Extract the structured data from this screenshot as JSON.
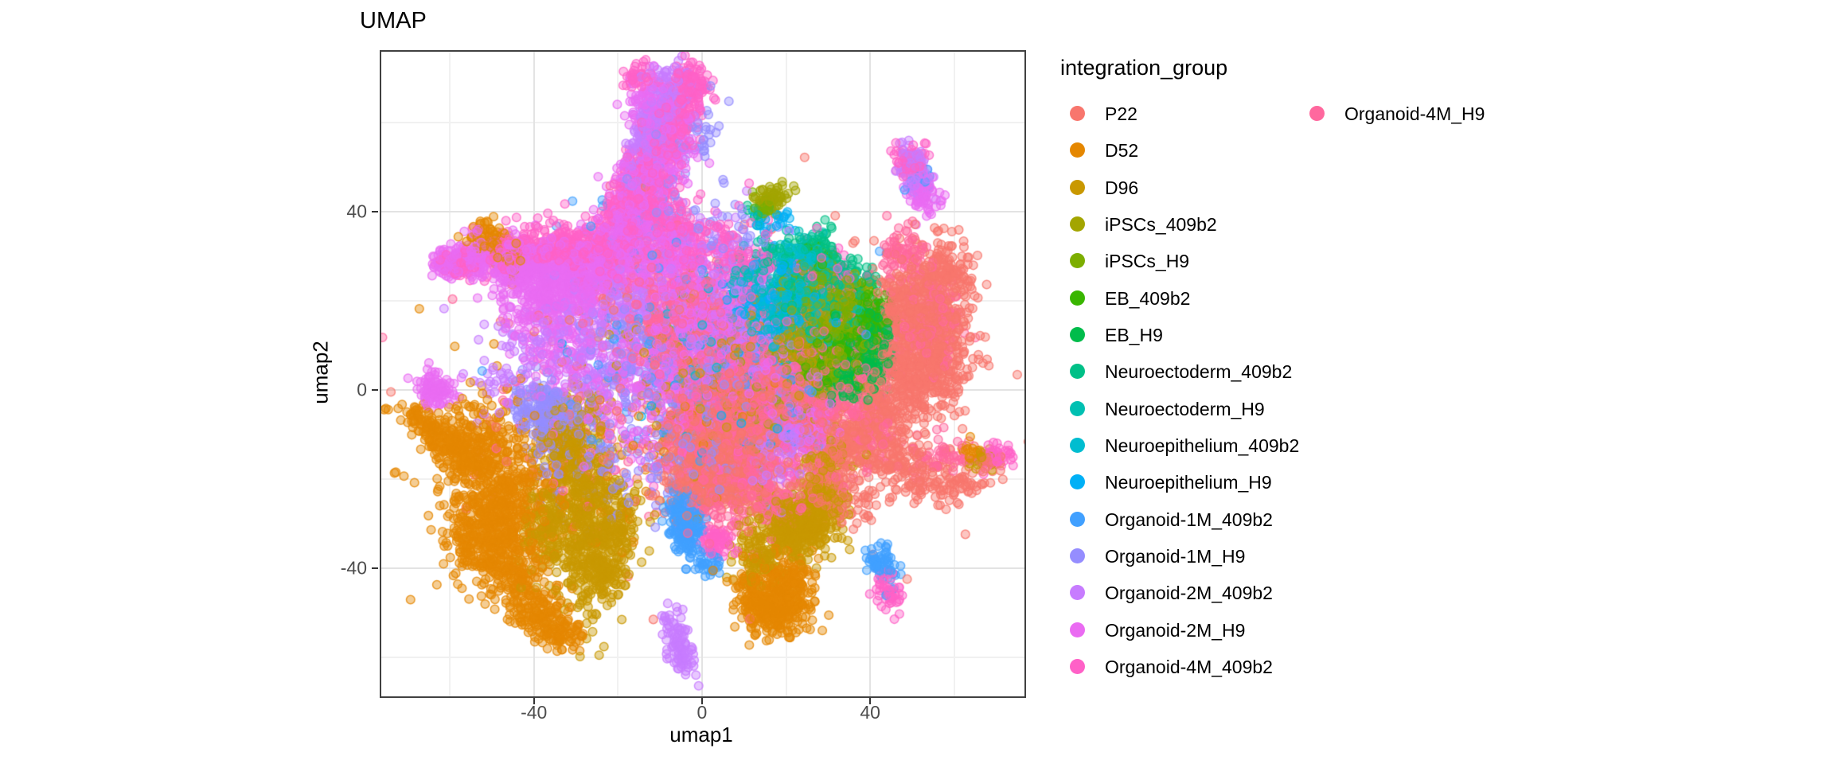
{
  "title": "UMAP",
  "axes": {
    "x": {
      "label": "umap1",
      "ticks": [
        -40,
        0,
        40
      ],
      "minor_ticks": [
        -60,
        -20,
        20,
        60
      ]
    },
    "y": {
      "label": "umap2",
      "ticks": [
        40,
        0,
        -40
      ],
      "minor_ticks": [
        60,
        20,
        -20,
        -60
      ]
    }
  },
  "legend": {
    "title": "integration_group",
    "items": [
      {
        "label": "P22",
        "color": "#F8766D"
      },
      {
        "label": "D52",
        "color": "#E58700"
      },
      {
        "label": "D96",
        "color": "#C99800"
      },
      {
        "label": "iPSCs_409b2",
        "color": "#A3A500"
      },
      {
        "label": "iPSCs_H9",
        "color": "#7CAE00"
      },
      {
        "label": "EB_409b2",
        "color": "#39B600"
      },
      {
        "label": "EB_H9",
        "color": "#00BC4B"
      },
      {
        "label": "Neuroectoderm_409b2",
        "color": "#00C087"
      },
      {
        "label": "Neuroectoderm_H9",
        "color": "#00C0B2"
      },
      {
        "label": "Neuroepithelium_409b2",
        "color": "#00BDD0"
      },
      {
        "label": "Neuroepithelium_H9",
        "color": "#00B0F6"
      },
      {
        "label": "Organoid-1M_409b2",
        "color": "#41A0FF"
      },
      {
        "label": "Organoid-1M_H9",
        "color": "#958DFF"
      },
      {
        "label": "Organoid-2M_409b2",
        "color": "#C77CFF"
      },
      {
        "label": "Organoid-2M_H9",
        "color": "#EA6BF2"
      },
      {
        "label": "Organoid-4M_409b2",
        "color": "#FF61C7"
      },
      {
        "label": "Organoid-4M_H9",
        "color": "#FF689E"
      }
    ]
  },
  "chart_data": {
    "type": "scatter",
    "title": "UMAP",
    "xlabel": "umap1",
    "ylabel": "umap2",
    "xlim": [
      -76.3,
      76.7
    ],
    "ylim": [
      -68.8,
      75.9
    ],
    "x_ticks": [
      -40,
      0,
      40
    ],
    "y_ticks": [
      40,
      0,
      -40
    ],
    "x_minor": [
      -60,
      -20,
      20,
      60
    ],
    "y_minor": [
      60,
      20,
      -20,
      -60
    ],
    "grid": true,
    "legend_position": "right",
    "point_alpha": 0.42,
    "point_radius_px": 5.3,
    "groups": [
      "P22",
      "D52",
      "D96",
      "iPSCs_409b2",
      "iPSCs_H9",
      "EB_409b2",
      "EB_H9",
      "Neuroectoderm_409b2",
      "Neuroectoderm_H9",
      "Neuroepithelium_409b2",
      "Neuroepithelium_H9",
      "Organoid-1M_409b2",
      "Organoid-1M_H9",
      "Organoid-2M_409b2",
      "Organoid-2M_H9",
      "Organoid-4M_409b2",
      "Organoid-4M_H9"
    ],
    "cluster_format": "[group_index, center_x, center_y, sigma_x, sigma_y, n_points, rotation_deg?]",
    "clusters": [
      [
        0,
        53,
        14,
        6,
        7,
        500
      ],
      [
        0,
        57,
        26,
        4,
        4,
        150
      ],
      [
        0,
        47,
        1,
        5,
        5,
        220
      ],
      [
        0,
        44,
        -13,
        4,
        4,
        150
      ],
      [
        0,
        52,
        -19,
        4,
        2.5,
        90
      ],
      [
        0,
        60,
        -22,
        3,
        2,
        50
      ],
      [
        0,
        2,
        -12,
        6,
        6,
        320
      ],
      [
        0,
        8,
        -20,
        5,
        4,
        220
      ],
      [
        0,
        -3,
        -19,
        4,
        4,
        150
      ],
      [
        0,
        12,
        -6,
        6,
        5,
        220
      ],
      [
        0,
        21,
        -3,
        6,
        5,
        150
      ],
      [
        0,
        28,
        -19,
        3,
        5,
        110
      ],
      [
        0,
        34,
        -12,
        3,
        4,
        110
      ],
      [
        0,
        40,
        -5,
        3,
        4,
        90
      ],
      [
        0,
        5,
        2,
        8,
        7,
        200
      ],
      [
        0,
        0,
        0,
        28,
        18,
        180
      ],
      [
        0,
        55,
        5,
        4,
        5,
        150
      ],
      [
        0,
        48,
        20,
        4,
        4,
        120
      ],
      [
        0,
        36,
        -25,
        3,
        3,
        60
      ],
      [
        0,
        68,
        -17,
        2,
        2,
        30
      ],
      [
        1,
        -48,
        -25,
        6,
        8,
        550
      ],
      [
        1,
        -55,
        -13,
        4,
        4,
        180
      ],
      [
        1,
        -66,
        -7.5,
        3,
        1.6,
        90,
        -30
      ],
      [
        1,
        -60,
        -12,
        3,
        2.5,
        80,
        -25
      ],
      [
        1,
        -44,
        -42,
        4,
        4,
        160
      ],
      [
        1,
        -38,
        -51,
        3.5,
        2.5,
        130
      ],
      [
        1,
        -33,
        -55,
        2.5,
        1.8,
        60
      ],
      [
        1,
        -52,
        -35,
        4,
        4,
        150
      ],
      [
        1,
        17,
        -49,
        4,
        3,
        260
      ],
      [
        1,
        21,
        -43,
        3,
        3,
        130
      ],
      [
        1,
        13,
        -44,
        2.5,
        2.5,
        80
      ],
      [
        1,
        -51,
        34,
        2.5,
        1.8,
        70
      ],
      [
        1,
        -45,
        29,
        2,
        1.5,
        40
      ],
      [
        1,
        -40,
        -20,
        14,
        12,
        160
      ],
      [
        1,
        5,
        -2,
        12,
        9,
        90
      ],
      [
        1,
        64,
        -14,
        1.5,
        1.2,
        18
      ],
      [
        2,
        -28,
        -25,
        3.5,
        11,
        420
      ],
      [
        2,
        -24,
        -40,
        3.5,
        4,
        160
      ],
      [
        2,
        -33,
        -12,
        3,
        4,
        160
      ],
      [
        2,
        -36,
        -31,
        4,
        6,
        200
      ],
      [
        2,
        22,
        -31,
        5,
        3.5,
        380
      ],
      [
        2,
        27,
        -25,
        3,
        3,
        130
      ],
      [
        2,
        13,
        -37,
        3,
        3,
        90
      ],
      [
        2,
        24,
        9,
        6,
        5,
        130
      ],
      [
        2,
        5,
        4,
        13,
        9,
        180
      ],
      [
        2,
        30,
        -15,
        3,
        3,
        70
      ],
      [
        2,
        67,
        -16,
        2,
        1.5,
        22
      ],
      [
        2,
        -20,
        -30,
        3,
        5,
        120
      ],
      [
        3,
        27,
        17,
        4.5,
        4,
        360
      ],
      [
        3,
        31,
        22,
        3,
        3,
        150
      ],
      [
        3,
        22,
        12,
        3,
        3,
        130
      ],
      [
        3,
        16.5,
        43,
        1.8,
        1.4,
        55
      ],
      [
        3,
        20,
        2,
        8,
        6,
        90
      ],
      [
        3,
        33,
        8,
        3,
        3,
        90
      ],
      [
        4,
        31,
        13,
        4,
        3.5,
        320
      ],
      [
        4,
        26,
        24,
        3,
        3,
        130
      ],
      [
        4,
        35,
        18,
        3,
        3,
        130
      ],
      [
        4,
        15,
        41.5,
        1.6,
        1.3,
        35
      ],
      [
        4,
        28,
        6,
        3,
        3,
        90
      ],
      [
        5,
        35,
        11,
        3.5,
        3,
        260
      ],
      [
        5,
        30,
        6,
        3,
        3,
        110
      ],
      [
        5,
        40,
        15,
        2.5,
        2.5,
        90
      ],
      [
        5,
        27,
        30,
        2,
        2,
        25
      ],
      [
        5,
        38,
        20,
        2.5,
        2,
        50
      ],
      [
        6,
        37,
        7,
        3,
        3.5,
        320
      ],
      [
        6,
        41,
        11,
        2.5,
        2.5,
        110
      ],
      [
        6,
        33,
        2,
        3,
        2.5,
        90
      ],
      [
        6,
        36,
        15,
        2.5,
        2,
        60
      ],
      [
        7,
        30,
        25,
        4,
        3,
        160
      ],
      [
        7,
        24,
        18,
        4,
        3,
        110
      ],
      [
        7,
        35,
        21,
        3,
        2.5,
        90
      ],
      [
        7,
        14,
        40,
        1.5,
        1.2,
        15
      ],
      [
        7,
        18,
        28,
        4,
        3,
        55
      ],
      [
        7,
        28,
        33,
        2.5,
        2,
        35
      ],
      [
        8,
        27,
        21,
        4,
        3,
        160
      ],
      [
        8,
        20,
        15,
        4,
        3,
        110
      ],
      [
        8,
        32,
        16,
        3,
        3,
        90
      ],
      [
        8,
        12,
        25,
        3,
        3,
        45
      ],
      [
        8,
        22,
        30,
        3,
        2.5,
        45
      ],
      [
        9,
        22,
        20,
        4,
        4,
        160
      ],
      [
        9,
        16,
        14,
        3,
        3,
        90
      ],
      [
        9,
        28,
        12,
        3,
        3,
        90
      ],
      [
        9,
        8,
        12,
        9,
        7,
        90
      ],
      [
        9,
        25,
        28,
        3,
        2.5,
        45
      ],
      [
        10,
        18,
        17,
        3,
        3,
        110
      ],
      [
        10,
        24,
        25,
        3,
        3,
        65
      ],
      [
        10,
        10,
        20,
        4,
        4,
        65
      ],
      [
        10,
        17,
        37,
        2.5,
        2.5,
        28
      ],
      [
        10,
        2,
        2,
        14,
        11,
        70
      ],
      [
        10,
        30,
        18,
        3,
        3,
        50
      ],
      [
        11,
        -3.5,
        -31,
        1.8,
        3,
        210
      ],
      [
        11,
        -5,
        -25,
        2,
        2,
        65
      ],
      [
        11,
        43,
        -39,
        1.6,
        2,
        65,
        15
      ],
      [
        11,
        1,
        -39,
        2,
        1.5,
        35
      ],
      [
        11,
        -12,
        2,
        14,
        11,
        85
      ],
      [
        11,
        14,
        8,
        11,
        9,
        60
      ],
      [
        11,
        -15,
        30,
        11,
        9,
        45
      ],
      [
        11,
        51,
        47,
        1.5,
        1.5,
        15
      ],
      [
        12,
        -35,
        -8,
        4,
        4,
        160
      ],
      [
        12,
        -40,
        -3,
        3,
        3,
        90
      ],
      [
        12,
        8,
        3,
        8,
        7,
        160
      ],
      [
        12,
        -15,
        8,
        6,
        6,
        110
      ],
      [
        12,
        -2,
        -14,
        9,
        7,
        90
      ],
      [
        12,
        -25,
        -18,
        6,
        6,
        70
      ],
      [
        12,
        5,
        35,
        6,
        6,
        40
      ],
      [
        12,
        -10,
        45,
        4,
        8,
        50,
        -15
      ],
      [
        12,
        0,
        58,
        3,
        5,
        30,
        -15
      ],
      [
        13,
        -10,
        62,
        2.5,
        4.5,
        140,
        -15
      ],
      [
        13,
        -14,
        54,
        2.5,
        4,
        110,
        -15
      ],
      [
        13,
        -6,
        68,
        3,
        2.5,
        70
      ],
      [
        13,
        5,
        12,
        8,
        7,
        160
      ],
      [
        13,
        -20,
        20,
        5,
        5,
        110
      ],
      [
        13,
        51,
        49,
        1.8,
        3,
        90,
        20
      ],
      [
        13,
        22,
        -10,
        3,
        2,
        90
      ],
      [
        13,
        -5.5,
        -57,
        1.5,
        4,
        100,
        15
      ],
      [
        13,
        -25,
        5,
        5,
        5,
        110
      ],
      [
        13,
        -2,
        30,
        8,
        6,
        80
      ],
      [
        13,
        -35,
        15,
        5,
        5,
        70
      ],
      [
        13,
        15,
        -15,
        5,
        4,
        70
      ],
      [
        13,
        -45,
        5,
        5,
        7,
        60
      ],
      [
        14,
        -15,
        45,
        3,
        6,
        220,
        -15
      ],
      [
        14,
        -19,
        35,
        3,
        4,
        160
      ],
      [
        14,
        -8,
        55,
        3,
        5,
        160,
        -15
      ],
      [
        14,
        -12,
        65,
        3,
        3,
        90
      ],
      [
        14,
        -30,
        25,
        6,
        4,
        320
      ],
      [
        14,
        -42,
        28,
        5,
        3,
        260
      ],
      [
        14,
        -52,
        30,
        3.5,
        2.2,
        130
      ],
      [
        14,
        -60,
        29,
        2.5,
        1.8,
        100
      ],
      [
        14,
        -63.5,
        0.5,
        2,
        2,
        95
      ],
      [
        14,
        -38,
        20,
        5,
        4,
        210
      ],
      [
        14,
        -22,
        28,
        4,
        4,
        160
      ],
      [
        14,
        -10,
        30,
        4,
        4,
        160
      ],
      [
        14,
        0,
        20,
        6,
        6,
        210
      ],
      [
        14,
        -5,
        8,
        7,
        7,
        260
      ],
      [
        14,
        10,
        12,
        6,
        6,
        160
      ],
      [
        14,
        52,
        44,
        2,
        2.5,
        70,
        20
      ],
      [
        14,
        -20,
        -5,
        11,
        8,
        160
      ],
      [
        14,
        18,
        2,
        6,
        6,
        130
      ],
      [
        14,
        -33,
        8,
        5,
        6,
        110
      ],
      [
        14,
        25,
        -8,
        4,
        4,
        90
      ],
      [
        15,
        -12,
        50,
        3,
        7,
        260,
        -15
      ],
      [
        15,
        -17,
        40,
        3,
        5,
        160,
        -15
      ],
      [
        15,
        -5,
        62,
        3,
        5,
        160,
        -15
      ],
      [
        15,
        -3,
        70,
        2.5,
        2,
        60
      ],
      [
        15,
        -15,
        70,
        2,
        1.5,
        40
      ],
      [
        15,
        -25,
        30,
        5,
        4,
        210
      ],
      [
        15,
        -35,
        32,
        4,
        2.5,
        160
      ],
      [
        15,
        -47,
        31,
        3,
        2,
        110
      ],
      [
        15,
        -57,
        28,
        2.5,
        1.5,
        70
      ],
      [
        15,
        3.6,
        -34,
        1.8,
        1.8,
        75
      ],
      [
        15,
        44,
        -45,
        1.5,
        2.5,
        55,
        15
      ],
      [
        15,
        69,
        -15,
        2,
        1.3,
        60
      ],
      [
        15,
        0,
        32,
        5,
        4,
        130
      ],
      [
        15,
        30,
        27,
        4,
        3,
        60
      ],
      [
        15,
        50,
        52,
        2,
        2,
        60,
        20
      ],
      [
        15,
        8,
        -8,
        10,
        8,
        160
      ],
      [
        15,
        -8,
        38,
        3,
        4,
        110
      ],
      [
        15,
        20,
        18,
        6,
        6,
        90
      ],
      [
        15,
        12,
        28,
        4,
        4,
        70
      ],
      [
        16,
        5,
        -5,
        8,
        7,
        420
      ],
      [
        16,
        15,
        5,
        7,
        6,
        260
      ],
      [
        16,
        -5,
        15,
        6,
        5,
        210
      ],
      [
        16,
        25,
        -5,
        5,
        5,
        160
      ],
      [
        16,
        10,
        -18,
        5,
        4,
        160
      ],
      [
        16,
        35,
        5,
        5,
        5,
        110
      ],
      [
        16,
        55,
        15,
        4,
        5,
        110
      ],
      [
        16,
        48,
        30,
        3,
        3,
        80
      ],
      [
        16,
        18,
        -25,
        4,
        3,
        80
      ],
      [
        16,
        -12,
        20,
        5,
        5,
        110
      ],
      [
        16,
        3,
        -25,
        4,
        3,
        70
      ],
      [
        16,
        28,
        15,
        5,
        5,
        80
      ],
      [
        16,
        0,
        0,
        24,
        14,
        190
      ],
      [
        16,
        58,
        -15,
        4,
        3,
        50
      ],
      [
        16,
        40,
        -8,
        4,
        4,
        70
      ]
    ]
  }
}
